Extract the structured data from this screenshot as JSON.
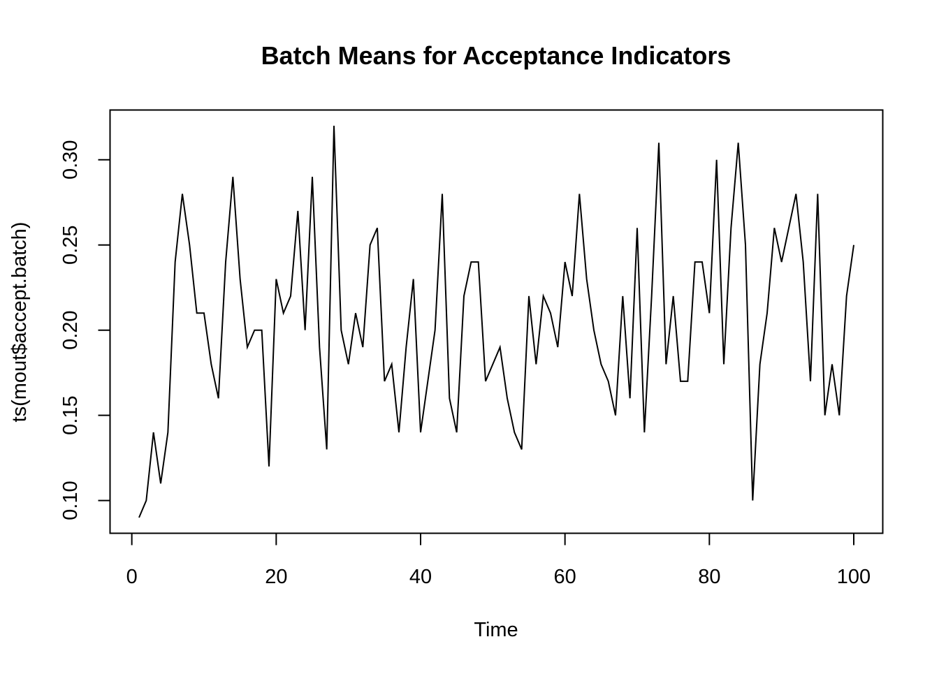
{
  "chart_data": {
    "type": "line",
    "title": "Batch Means for Acceptance Indicators",
    "xlabel": "Time",
    "ylabel": "ts(mout$accept.batch)",
    "xlim": [
      1,
      100
    ],
    "ylim": [
      0.09,
      0.32
    ],
    "x_ticks": [
      0,
      20,
      40,
      60,
      80,
      100
    ],
    "x_tick_labels": [
      "0",
      "20",
      "40",
      "60",
      "80",
      "100"
    ],
    "y_ticks": [
      0.1,
      0.15,
      0.2,
      0.25,
      0.3
    ],
    "y_tick_labels": [
      "0.10",
      "0.15",
      "0.20",
      "0.25",
      "0.30"
    ],
    "grid": false,
    "x": [
      1,
      2,
      3,
      4,
      5,
      6,
      7,
      8,
      9,
      10,
      11,
      12,
      13,
      14,
      15,
      16,
      17,
      18,
      19,
      20,
      21,
      22,
      23,
      24,
      25,
      26,
      27,
      28,
      29,
      30,
      31,
      32,
      33,
      34,
      35,
      36,
      37,
      38,
      39,
      40,
      41,
      42,
      43,
      44,
      45,
      46,
      47,
      48,
      49,
      50,
      51,
      52,
      53,
      54,
      55,
      56,
      57,
      58,
      59,
      60,
      61,
      62,
      63,
      64,
      65,
      66,
      67,
      68,
      69,
      70,
      71,
      72,
      73,
      74,
      75,
      76,
      77,
      78,
      79,
      80,
      81,
      82,
      83,
      84,
      85,
      86,
      87,
      88,
      89,
      90,
      91,
      92,
      93,
      94,
      95,
      96,
      97,
      98,
      99,
      100
    ],
    "series": [
      {
        "color": "#000000",
        "values": [
          0.09,
          0.1,
          0.14,
          0.11,
          0.14,
          0.24,
          0.28,
          0.25,
          0.21,
          0.21,
          0.18,
          0.16,
          0.24,
          0.29,
          0.23,
          0.19,
          0.2,
          0.2,
          0.12,
          0.23,
          0.21,
          0.22,
          0.27,
          0.2,
          0.29,
          0.19,
          0.13,
          0.32,
          0.2,
          0.18,
          0.21,
          0.19,
          0.25,
          0.26,
          0.17,
          0.18,
          0.14,
          0.19,
          0.23,
          0.14,
          0.17,
          0.2,
          0.28,
          0.16,
          0.14,
          0.22,
          0.24,
          0.24,
          0.17,
          0.18,
          0.19,
          0.16,
          0.14,
          0.13,
          0.22,
          0.18,
          0.22,
          0.21,
          0.19,
          0.24,
          0.22,
          0.28,
          0.23,
          0.2,
          0.18,
          0.17,
          0.15,
          0.22,
          0.16,
          0.26,
          0.14,
          0.22,
          0.31,
          0.18,
          0.22,
          0.17,
          0.17,
          0.24,
          0.24,
          0.21,
          0.3,
          0.18,
          0.26,
          0.31,
          0.25,
          0.1,
          0.18,
          0.21,
          0.26,
          0.24,
          0.26,
          0.28,
          0.24,
          0.17,
          0.28,
          0.15,
          0.18,
          0.15,
          0.22,
          0.25
        ]
      }
    ]
  }
}
